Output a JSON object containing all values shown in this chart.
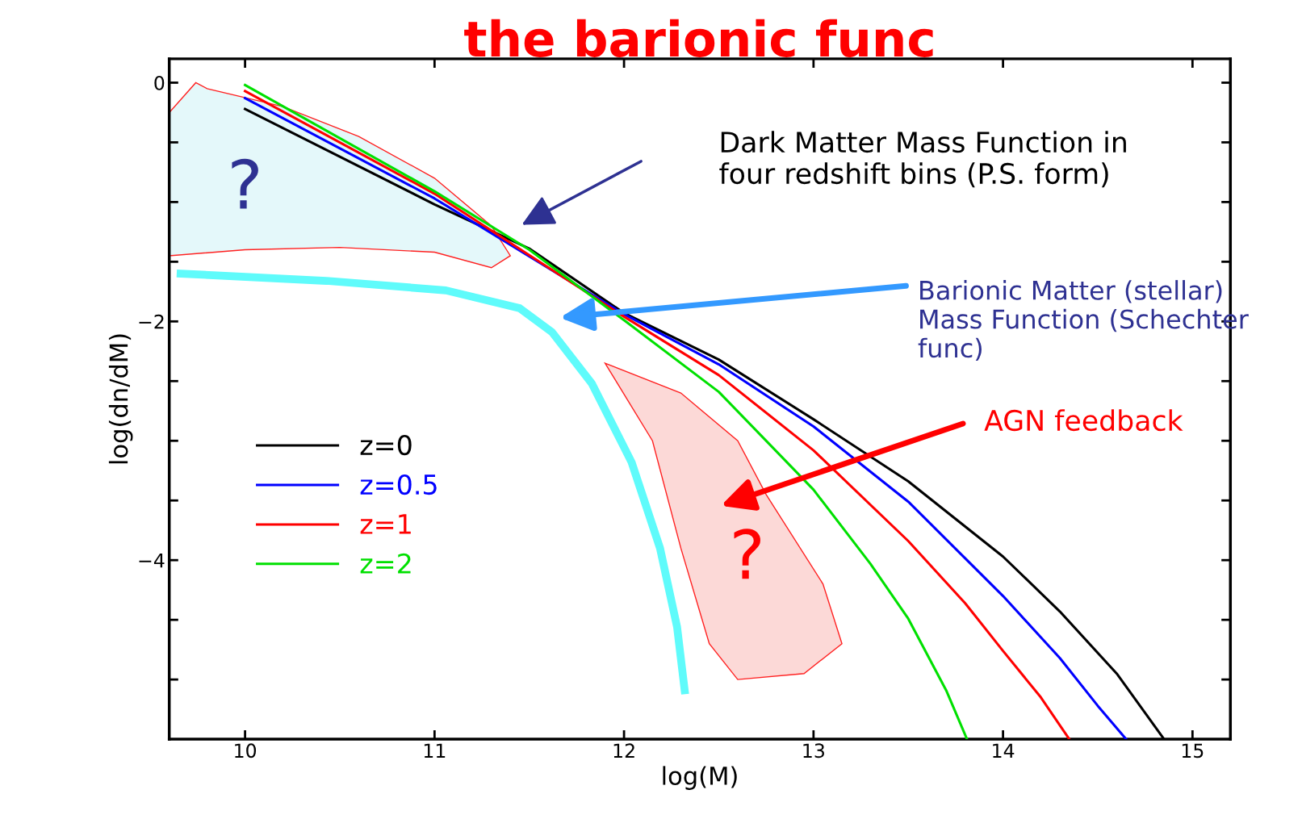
{
  "chart_data": {
    "type": "line",
    "title": "the barionic func",
    "xlabel": "log(M)",
    "ylabel": "log(dn/dM)",
    "xlim": [
      9.6,
      15.2
    ],
    "ylim": [
      -5.5,
      0.2
    ],
    "xticks": [
      10,
      11,
      12,
      13,
      14,
      15
    ],
    "yticks": [
      0,
      {
        "value": -0.5,
        "label": null
      },
      {
        "value": -1,
        "label": null
      },
      {
        "value": -1.5,
        "label": null
      },
      {
        "value": -2,
        "label": "−2"
      },
      {
        "value": -2.5,
        "label": null
      },
      {
        "value": -3,
        "label": null
      },
      {
        "value": -3.5,
        "label": null
      },
      {
        "value": -4,
        "label": "−4"
      },
      {
        "value": -4.5,
        "label": null
      },
      {
        "value": -5,
        "label": null
      }
    ],
    "grid": false,
    "legend": "bottom left",
    "line_style": "solid",
    "marker": "none",
    "series": [
      {
        "name": "z=0",
        "color": "#000000",
        "x": [
          10,
          11,
          11.5,
          12,
          12.5,
          13,
          13.5,
          14,
          14.3,
          14.6,
          14.85
        ],
        "values": [
          -0.22,
          -1.02,
          -1.39,
          -1.93,
          -2.32,
          -2.82,
          -3.34,
          -3.97,
          -4.43,
          -4.95,
          -5.5
        ]
      },
      {
        "name": "z=0.5",
        "color": "#0000ff",
        "x": [
          10,
          11,
          12,
          12.5,
          13,
          13.5,
          14,
          14.3,
          14.5,
          14.65
        ],
        "values": [
          -0.13,
          -0.97,
          -1.94,
          -2.36,
          -2.88,
          -3.51,
          -4.3,
          -4.82,
          -5.22,
          -5.5
        ]
      },
      {
        "name": "z=1",
        "color": "#ff0000",
        "x": [
          10,
          11,
          12,
          12.5,
          13,
          13.5,
          13.8,
          14,
          14.2,
          14.35
        ],
        "values": [
          -0.07,
          -0.93,
          -1.96,
          -2.45,
          -3.08,
          -3.84,
          -4.36,
          -4.76,
          -5.15,
          -5.5
        ]
      },
      {
        "name": "z=2",
        "color": "#00e000",
        "x": [
          10,
          11,
          11.5,
          12,
          12.5,
          13,
          13.3,
          13.5,
          13.7,
          13.81
        ],
        "values": [
          -0.02,
          -0.91,
          -1.4,
          -1.99,
          -2.59,
          -3.41,
          -4.03,
          -4.49,
          -5.09,
          -5.5
        ]
      },
      {
        "color": "#5ffbfb",
        "x": [
          9.66,
          10.43,
          11.06,
          11.45,
          11.62,
          11.83,
          12.04,
          12.19,
          12.28,
          12.32
        ],
        "values": [
          -1.6,
          -1.66,
          -1.74,
          -1.89,
          -2.09,
          -2.52,
          -3.18,
          -3.9,
          -4.56,
          -5.09
        ]
      }
    ],
    "annotations": [
      "Dark Matter Mass Function in\nfour redshift bins (P.S. form)",
      "Barionic Matter (stellar)\nMass Function (Schechter\nfunc)",
      "AGN feedback",
      "?",
      "?"
    ]
  }
}
